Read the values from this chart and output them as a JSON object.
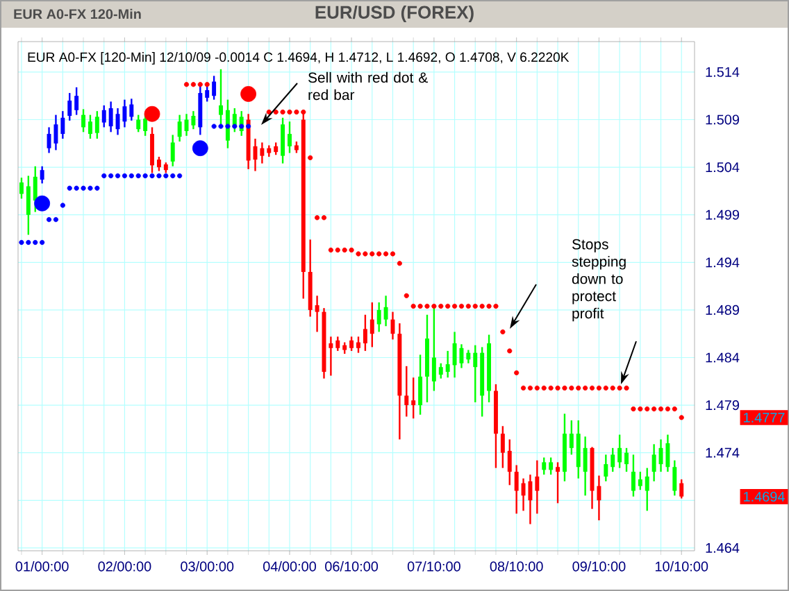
{
  "chart_data": {
    "type": "candlestick",
    "title": "EUR/USD (FOREX)",
    "annotations": [
      "EUR A0-FX 120-Min",
      "EUR A0-FX [120-Min] 12/10/09 -0.0014 C 1.4694, H 1.4712, L 1.4692, O 1.4708, V 6.2220K",
      "Sell with red dot & red bar",
      "Stops stepping down to protect profit",
      "1.4777",
      "1.4694"
    ],
    "categories": [
      null,
      null,
      null,
      "01/00:00",
      null,
      null,
      null,
      null,
      null,
      null,
      null,
      null,
      null,
      null,
      null,
      "02/00:00",
      null,
      null,
      null,
      null,
      null,
      null,
      null,
      null,
      null,
      null,
      null,
      "03/00:00",
      null,
      null,
      null,
      null,
      null,
      null,
      null,
      null,
      null,
      null,
      null,
      "04/00:00",
      null,
      null,
      null,
      null,
      null,
      null,
      null,
      null,
      "06/10:00",
      null,
      null,
      null,
      null,
      null,
      null,
      null,
      null,
      null,
      null,
      null,
      "07/10:00",
      null,
      null,
      null,
      null,
      null,
      null,
      null,
      null,
      null,
      null,
      null,
      "08/10:00",
      null,
      null,
      null,
      null,
      null,
      null,
      null,
      null,
      null,
      null,
      null,
      "09/10:00",
      null,
      null,
      null,
      null,
      null,
      null,
      null,
      null,
      null,
      null,
      null,
      "10/10:00"
    ],
    "ohlc": [
      [
        1.5012,
        1.5029,
        1.5007,
        1.5024
      ],
      [
        1.499,
        1.5031,
        1.4969,
        1.502
      ],
      [
        1.5005,
        1.5041,
        1.4993,
        1.503
      ],
      [
        1.5027,
        1.5041,
        1.5023,
        1.5037
      ],
      [
        1.506,
        1.5082,
        1.5055,
        1.5075
      ],
      [
        1.5065,
        1.5095,
        1.5058,
        1.5085
      ],
      [
        1.5075,
        1.5099,
        1.507,
        1.5092
      ],
      [
        1.5094,
        1.5118,
        1.5089,
        1.511
      ],
      [
        1.51,
        1.5124,
        1.5095,
        1.5115
      ],
      [
        1.5082,
        1.5101,
        1.5077,
        1.5095
      ],
      [
        1.5075,
        1.5095,
        1.507,
        1.5088
      ],
      [
        1.5076,
        1.5099,
        1.507,
        1.5093
      ],
      [
        1.5087,
        1.5105,
        1.5082,
        1.51
      ],
      [
        1.5083,
        1.5109,
        1.5077,
        1.5102
      ],
      [
        1.508,
        1.5102,
        1.5074,
        1.5096
      ],
      [
        1.5088,
        1.5111,
        1.5082,
        1.5104
      ],
      [
        1.5093,
        1.5112,
        1.5089,
        1.5106
      ],
      [
        1.508,
        1.5095,
        1.5077,
        1.509
      ],
      [
        1.5078,
        1.5096,
        1.5073,
        1.5091
      ],
      [
        1.5075,
        1.5082,
        1.5034,
        1.5042
      ],
      [
        1.5048,
        1.5051,
        1.5036,
        1.504
      ],
      [
        1.5043,
        1.5045,
        1.5034,
        1.5037
      ],
      [
        1.5046,
        1.5074,
        1.5041,
        1.5066
      ],
      [
        1.5072,
        1.5095,
        1.5067,
        1.5088
      ],
      [
        1.5078,
        1.5096,
        1.5073,
        1.509
      ],
      [
        1.5084,
        1.5099,
        1.508,
        1.5094
      ],
      [
        1.5082,
        1.5128,
        1.5074,
        1.5118
      ],
      [
        1.5113,
        1.5125,
        1.5109,
        1.5121
      ],
      [
        1.5115,
        1.5136,
        1.5111,
        1.513
      ],
      [
        1.5095,
        1.5143,
        1.5085,
        1.5105
      ],
      [
        1.5068,
        1.5111,
        1.506,
        1.51
      ],
      [
        1.5082,
        1.5102,
        1.5077,
        1.5096
      ],
      [
        1.5078,
        1.5099,
        1.5073,
        1.5093
      ],
      [
        1.509,
        1.5096,
        1.5038,
        1.5047
      ],
      [
        1.5062,
        1.507,
        1.5036,
        1.5048
      ],
      [
        1.506,
        1.5066,
        1.5044,
        1.5052
      ],
      [
        1.506,
        1.5063,
        1.5051,
        1.5055
      ],
      [
        1.5062,
        1.5066,
        1.5053,
        1.5056
      ],
      [
        1.5052,
        1.5092,
        1.5044,
        1.5085
      ],
      [
        1.5062,
        1.5088,
        1.5055,
        1.5075
      ],
      [
        1.5063,
        1.5067,
        1.5055,
        1.5058
      ],
      [
        1.509,
        1.5096,
        1.4902,
        1.493
      ],
      [
        1.493,
        1.4964,
        1.4883,
        1.489
      ],
      [
        1.4895,
        1.4905,
        1.4867,
        1.4888
      ],
      [
        1.4888,
        1.4892,
        1.4818,
        1.4825
      ],
      [
        1.4855,
        1.4862,
        1.4821,
        1.485
      ],
      [
        1.4858,
        1.4862,
        1.4847,
        1.485
      ],
      [
        1.4853,
        1.4856,
        1.4844,
        1.4848
      ],
      [
        1.4858,
        1.4862,
        1.4847,
        1.485
      ],
      [
        1.4856,
        1.4862,
        1.4845,
        1.485
      ],
      [
        1.487,
        1.4885,
        1.4847,
        1.4855
      ],
      [
        1.488,
        1.4898,
        1.4851,
        1.4865
      ],
      [
        1.4875,
        1.4898,
        1.4867,
        1.489
      ],
      [
        1.488,
        1.4905,
        1.4873,
        1.4893
      ],
      [
        1.488,
        1.4888,
        1.4859,
        1.4865
      ],
      [
        1.4865,
        1.4876,
        1.4754,
        1.48
      ],
      [
        1.48,
        1.4831,
        1.4778,
        1.479
      ],
      [
        1.4795,
        1.4819,
        1.4776,
        1.479
      ],
      [
        1.479,
        1.4843,
        1.478,
        1.482
      ],
      [
        1.482,
        1.4885,
        1.4793,
        1.486
      ],
      [
        1.4815,
        1.4892,
        1.4805,
        1.484
      ],
      [
        1.4822,
        1.4834,
        1.4818,
        1.483
      ],
      [
        1.4825,
        1.4847,
        1.4819,
        1.4833
      ],
      [
        1.4832,
        1.4867,
        1.4819,
        1.4855
      ],
      [
        1.4834,
        1.4854,
        1.4829,
        1.485
      ],
      [
        1.4838,
        1.4848,
        1.4834,
        1.4845
      ],
      [
        1.483,
        1.4853,
        1.4793,
        1.4845
      ],
      [
        1.48,
        1.4851,
        1.4778,
        1.4845
      ],
      [
        1.4805,
        1.4864,
        1.4793,
        1.4855
      ],
      [
        1.4805,
        1.4812,
        1.4724,
        1.476
      ],
      [
        1.476,
        1.4768,
        1.4724,
        1.474
      ],
      [
        1.4742,
        1.4754,
        1.4706,
        1.472
      ],
      [
        1.472,
        1.4727,
        1.4676,
        1.47
      ],
      [
        1.4708,
        1.4713,
        1.4679,
        1.4695
      ],
      [
        1.471,
        1.4717,
        1.4665,
        1.469
      ],
      [
        1.4715,
        1.4732,
        1.4676,
        1.47
      ],
      [
        1.4722,
        1.4735,
        1.4717,
        1.473
      ],
      [
        1.4722,
        1.4735,
        1.4717,
        1.473
      ],
      [
        1.4725,
        1.473,
        1.4687,
        1.472
      ],
      [
        1.472,
        1.4781,
        1.471,
        1.476
      ],
      [
        1.4745,
        1.4774,
        1.4738,
        1.476
      ],
      [
        1.4725,
        1.4774,
        1.4713,
        1.476
      ],
      [
        1.472,
        1.4757,
        1.4695,
        1.4745
      ],
      [
        1.4745,
        1.4746,
        1.4681,
        1.47
      ],
      [
        1.4705,
        1.4716,
        1.4669,
        1.469
      ],
      [
        1.4715,
        1.4738,
        1.471,
        1.4728
      ],
      [
        1.4725,
        1.4745,
        1.472,
        1.4738
      ],
      [
        1.473,
        1.4759,
        1.4724,
        1.4745
      ],
      [
        1.4728,
        1.4745,
        1.472,
        1.474
      ],
      [
        1.47,
        1.4738,
        1.4694,
        1.472
      ],
      [
        1.4705,
        1.472,
        1.4701,
        1.4712
      ],
      [
        1.47,
        1.4724,
        1.4679,
        1.4715
      ],
      [
        1.472,
        1.4749,
        1.471,
        1.4738
      ],
      [
        1.4728,
        1.4754,
        1.472,
        1.4745
      ],
      [
        1.4725,
        1.4759,
        1.472,
        1.475
      ],
      [
        1.47,
        1.4732,
        1.4695,
        1.4725
      ],
      [
        1.4708,
        1.4712,
        1.4692,
        1.4694
      ]
    ],
    "colors": [
      "#00ff00",
      "#00ff00",
      "#00ff00",
      "#0000ff",
      "#0000ff",
      "#0000ff",
      "#0000ff",
      "#0000ff",
      "#0000ff",
      "#00ff00",
      "#00ff00",
      "#00ff00",
      "#0000ff",
      "#0000ff",
      "#0000ff",
      "#0000ff",
      "#0000ff",
      "#00ff00",
      "#00ff00",
      "#ff0000",
      "#ff0000",
      "#ff0000",
      "#00ff00",
      "#00ff00",
      "#00ff00",
      "#00ff00",
      "#0000ff",
      "#0000ff",
      "#0000ff",
      "#00ff00",
      "#00ff00",
      "#00ff00",
      "#00ff00",
      "#ff0000",
      "#ff0000",
      "#ff0000",
      "#ff0000",
      "#ff0000",
      "#00ff00",
      "#00ff00",
      "#ff0000",
      "#ff0000",
      "#ff0000",
      "#ff0000",
      "#ff0000",
      "#ff0000",
      "#ff0000",
      "#ff0000",
      "#ff0000",
      "#ff0000",
      "#ff0000",
      "#ff0000",
      "#00ff00",
      "#00ff00",
      "#ff0000",
      "#ff0000",
      "#ff0000",
      "#ff0000",
      "#00ff00",
      "#00ff00",
      "#00ff00",
      "#00ff00",
      "#00ff00",
      "#00ff00",
      "#00ff00",
      "#00ff00",
      "#00ff00",
      "#00ff00",
      "#00ff00",
      "#ff0000",
      "#ff0000",
      "#ff0000",
      "#ff0000",
      "#ff0000",
      "#ff0000",
      "#ff0000",
      "#00ff00",
      "#00ff00",
      "#ff0000",
      "#00ff00",
      "#00ff00",
      "#00ff00",
      "#00ff00",
      "#ff0000",
      "#ff0000",
      "#00ff00",
      "#00ff00",
      "#00ff00",
      "#00ff00",
      "#00ff00",
      "#00ff00",
      "#00ff00",
      "#00ff00",
      "#00ff00",
      "#00ff00",
      "#00ff00",
      "#ff0000"
    ],
    "series": [
      {
        "type": "scatter",
        "marker": "circle",
        "color": "#0000ff",
        "values": [
          1.4961,
          1.4961,
          1.4961,
          1.4961,
          1.4985,
          1.4985,
          1.5,
          1.5018,
          1.5018,
          1.5018,
          1.5018,
          1.5018,
          1.5031,
          1.5031,
          1.5031,
          1.5031,
          1.5031,
          1.5031,
          1.5031,
          1.5031,
          1.5031,
          1.5031,
          1.5031,
          1.5031,
          null,
          null,
          null,
          null,
          1.5083,
          1.5083,
          1.5083,
          1.5083,
          1.5083,
          1.5083,
          null,
          null,
          null,
          null,
          null,
          null,
          null,
          null,
          null,
          null,
          null,
          null,
          null,
          null,
          null,
          null,
          null,
          null,
          null,
          null,
          null,
          null,
          null,
          null,
          null,
          null,
          null,
          null,
          null,
          null,
          null,
          null,
          null,
          null,
          null,
          null,
          null,
          null,
          null,
          null,
          null,
          null,
          null,
          null,
          null,
          null,
          null,
          null,
          null,
          null,
          null,
          null,
          null,
          null,
          null,
          null,
          null,
          null,
          null,
          null,
          null,
          null,
          null
        ]
      },
      {
        "type": "scatter",
        "marker": "circle",
        "color": "#ff0000",
        "values": [
          null,
          null,
          null,
          null,
          null,
          null,
          null,
          null,
          null,
          null,
          null,
          null,
          null,
          null,
          null,
          null,
          null,
          null,
          null,
          null,
          null,
          null,
          null,
          null,
          1.5127,
          1.5127,
          1.5127,
          1.5127,
          null,
          null,
          null,
          null,
          null,
          null,
          null,
          null,
          1.5098,
          1.5098,
          1.5098,
          1.5098,
          1.5098,
          1.5098,
          1.505,
          1.4987,
          1.4987,
          1.4953,
          1.4953,
          1.4953,
          1.4953,
          1.4949,
          1.4949,
          1.4949,
          1.4949,
          1.4949,
          1.4949,
          1.4939,
          1.4905,
          1.4894,
          1.4894,
          1.4894,
          1.4894,
          1.4894,
          1.4894,
          1.4894,
          1.4894,
          1.4894,
          1.4894,
          1.4894,
          1.4894,
          1.4894,
          1.4867,
          1.4847,
          1.4824,
          1.4808,
          1.4808,
          1.4808,
          1.4808,
          1.4808,
          1.4808,
          1.4808,
          1.4808,
          1.4808,
          1.4808,
          1.4808,
          1.4808,
          1.4808,
          1.4808,
          1.4808,
          1.4808,
          1.4786,
          1.4786,
          1.4786,
          1.4786,
          1.4786,
          1.4786,
          1.4786,
          1.4777
        ]
      },
      {
        "type": "bubble",
        "marker": "circle",
        "color": "#ff0000",
        "values": [
          null,
          null,
          null,
          null,
          null,
          null,
          null,
          null,
          null,
          null,
          null,
          null,
          null,
          null,
          null,
          null,
          null,
          null,
          null,
          1.5096,
          null,
          null,
          null,
          null,
          null,
          null,
          null,
          null,
          null,
          null,
          null,
          null,
          null,
          1.5117,
          null,
          null,
          null,
          null,
          null,
          null,
          null,
          null,
          null,
          null,
          null,
          null,
          null,
          null,
          null,
          null,
          null,
          null,
          null,
          null,
          null,
          null,
          null,
          null,
          null,
          null,
          null,
          null,
          null,
          null,
          null,
          null,
          null,
          null,
          null,
          null,
          null,
          null,
          null,
          null,
          null,
          null,
          null,
          null,
          null,
          null,
          null,
          null,
          null,
          null,
          null,
          null,
          null,
          null,
          null,
          null,
          null,
          null,
          null,
          null,
          null,
          null,
          null
        ],
        "sizes": [
          null,
          null,
          null,
          null,
          null,
          null,
          null,
          null,
          null,
          null,
          null,
          null,
          null,
          null,
          null,
          null,
          null,
          null,
          null,
          1,
          null,
          null,
          null,
          null,
          null,
          null,
          null,
          null,
          null,
          null,
          null,
          null,
          null,
          1,
          null,
          null,
          null,
          null,
          null,
          null,
          null,
          null,
          null,
          null,
          null,
          null,
          null,
          null,
          null,
          null,
          null,
          null,
          null,
          null,
          null,
          null,
          null,
          null,
          null,
          null,
          null,
          null,
          null,
          null,
          null,
          null,
          null,
          null,
          null,
          null,
          null,
          null,
          null,
          null,
          null,
          null,
          null,
          null,
          null,
          null,
          null,
          null,
          null,
          null,
          null,
          null,
          null,
          null,
          null,
          null,
          null,
          null,
          null,
          null,
          null,
          null,
          null
        ]
      },
      {
        "type": "bubble",
        "marker": "circle",
        "color": "#0000ff",
        "values": [
          null,
          null,
          null,
          1.5002,
          null,
          null,
          null,
          null,
          null,
          null,
          null,
          null,
          null,
          null,
          null,
          null,
          null,
          null,
          null,
          null,
          null,
          null,
          null,
          null,
          null,
          null,
          1.506,
          null,
          null,
          null,
          null,
          null,
          null,
          null,
          null,
          null,
          null,
          null,
          null,
          null,
          null,
          null,
          null,
          null,
          null,
          null,
          null,
          null,
          null,
          null,
          null,
          null,
          null,
          null,
          null,
          null,
          null,
          null,
          null,
          null,
          null,
          null,
          null,
          null,
          null,
          null,
          null,
          null,
          null,
          null,
          null,
          null,
          null,
          null,
          null,
          null,
          null,
          null,
          null,
          null,
          null,
          null,
          null,
          null,
          null,
          null,
          null,
          null,
          null,
          null,
          null,
          null,
          null,
          null,
          null,
          null,
          null
        ],
        "sizes": [
          null,
          null,
          null,
          1,
          null,
          null,
          null,
          null,
          null,
          null,
          null,
          null,
          null,
          null,
          null,
          null,
          null,
          null,
          null,
          null,
          null,
          null,
          null,
          null,
          null,
          null,
          1,
          null,
          null,
          null,
          null,
          null,
          null,
          null,
          null,
          null,
          null,
          null,
          null,
          null,
          null,
          null,
          null,
          null,
          null,
          null,
          null,
          null,
          null,
          null,
          null,
          null,
          null,
          null,
          null,
          null,
          null,
          null,
          null,
          null,
          null,
          null,
          null,
          null,
          null,
          null,
          null,
          null,
          null,
          null,
          null,
          null,
          null,
          null,
          null,
          null,
          null,
          null,
          null,
          null,
          null,
          null,
          null,
          null,
          null,
          null,
          null,
          null,
          null,
          null,
          null,
          null,
          null,
          null,
          null,
          null,
          null
        ]
      }
    ],
    "ylim": [
      1.4637,
      1.5172
    ],
    "yticks": [
      1.464,
      {
        "value": 1.469,
        "label": null
      },
      1.474,
      1.479,
      1.484,
      1.489,
      1.494,
      1.499,
      1.504,
      1.509,
      1.514
    ],
    "grid": true
  }
}
